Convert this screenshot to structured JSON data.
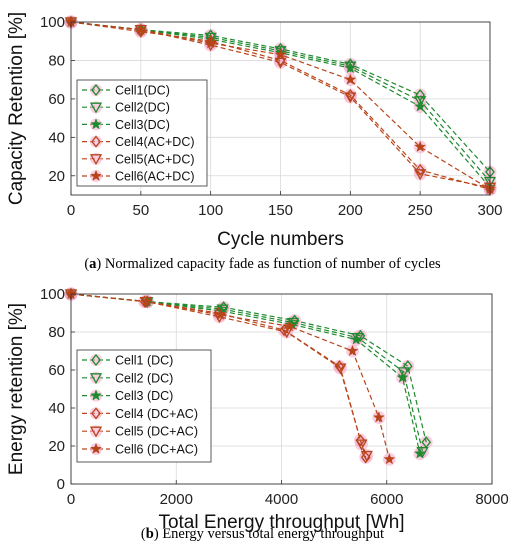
{
  "captions": {
    "a_label": "a",
    "a_text": "Normalized capacity fade as function of number of cycles",
    "b_label": "b",
    "b_text": "Energy versus total energy throughput"
  },
  "colors": {
    "dc": "#1f8a2e",
    "acdc": "#b8451a",
    "highlight": "#f4a8c8"
  },
  "chart_data": [
    {
      "type": "line",
      "xlabel": "Cycle numbers",
      "ylabel": "Capacity Retention [%]",
      "xlim": [
        0,
        300
      ],
      "ylim": [
        10,
        100
      ],
      "xticks": [
        0,
        50,
        100,
        150,
        200,
        250,
        300
      ],
      "yticks": [
        20,
        40,
        60,
        80,
        100
      ],
      "grid": true,
      "legend_position": "lower-left",
      "series": [
        {
          "name": "Cell1(DC)",
          "group": "dc",
          "marker": "diamond",
          "x": [
            0,
            50,
            100,
            150,
            200,
            250,
            300
          ],
          "y": [
            100,
            96,
            93,
            86,
            78,
            62,
            22
          ]
        },
        {
          "name": "Cell2(DC)",
          "group": "dc",
          "marker": "triangle-down",
          "x": [
            0,
            50,
            100,
            150,
            200,
            250,
            300
          ],
          "y": [
            100,
            96,
            92,
            85,
            77,
            59,
            17
          ]
        },
        {
          "name": "Cell3(DC)",
          "group": "dc",
          "marker": "star",
          "x": [
            0,
            50,
            100,
            150,
            200,
            250,
            300
          ],
          "y": [
            100,
            96,
            91,
            84,
            76,
            56,
            14
          ]
        },
        {
          "name": "Cell4(AC+DC)",
          "group": "acdc",
          "marker": "diamond",
          "x": [
            0,
            50,
            100,
            150,
            200,
            250,
            300
          ],
          "y": [
            100,
            95,
            90,
            80,
            62,
            23,
            13
          ]
        },
        {
          "name": "Cell5(AC+DC)",
          "group": "acdc",
          "marker": "triangle-down",
          "x": [
            0,
            50,
            100,
            150,
            200,
            250,
            300
          ],
          "y": [
            100,
            96,
            88,
            79,
            61,
            21,
            14
          ]
        },
        {
          "name": "Cell6(AC+DC)",
          "group": "acdc",
          "marker": "star",
          "x": [
            0,
            50,
            100,
            150,
            200,
            250,
            300
          ],
          "y": [
            100,
            96,
            89,
            83,
            70,
            35,
            13
          ]
        }
      ]
    },
    {
      "type": "line",
      "xlabel": "Total Energy throughput [Wh]",
      "ylabel": "Energy retention [%]",
      "xlim": [
        0,
        8000
      ],
      "ylim": [
        0,
        100
      ],
      "xticks": [
        0,
        2000,
        4000,
        6000,
        8000
      ],
      "yticks": [
        0,
        20,
        40,
        60,
        80,
        100
      ],
      "grid": true,
      "legend_position": "lower-left",
      "series": [
        {
          "name": "Cell1 (DC)",
          "group": "dc",
          "marker": "diamond",
          "x": [
            0,
            1450,
            2900,
            4250,
            5500,
            6400,
            6750
          ],
          "y": [
            100,
            96,
            93,
            86,
            78,
            62,
            22
          ]
        },
        {
          "name": "Cell2 (DC)",
          "group": "dc",
          "marker": "triangle-down",
          "x": [
            0,
            1450,
            2880,
            4220,
            5450,
            6320,
            6680
          ],
          "y": [
            100,
            96,
            92,
            85,
            77,
            59,
            17
          ]
        },
        {
          "name": "Cell3 (DC)",
          "group": "dc",
          "marker": "star",
          "x": [
            0,
            1450,
            2860,
            4200,
            5420,
            6300,
            6630
          ],
          "y": [
            100,
            96,
            91,
            84,
            76,
            56,
            16
          ]
        },
        {
          "name": "Cell4 (DC+AC)",
          "group": "acdc",
          "marker": "diamond",
          "x": [
            0,
            1400,
            2800,
            4050,
            5100,
            5500,
            5600
          ],
          "y": [
            100,
            96,
            90,
            81,
            62,
            23,
            14
          ]
        },
        {
          "name": "Cell5 (DC+AC)",
          "group": "acdc",
          "marker": "triangle-down",
          "x": [
            0,
            1420,
            2820,
            4100,
            5120,
            5520,
            5620
          ],
          "y": [
            100,
            96,
            88,
            80,
            61,
            21,
            15
          ]
        },
        {
          "name": "Cell6 (DC+AC)",
          "group": "acdc",
          "marker": "star",
          "x": [
            0,
            1440,
            2840,
            4150,
            5350,
            5850,
            6050
          ],
          "y": [
            100,
            96,
            89,
            83,
            70,
            35,
            13
          ]
        }
      ]
    }
  ]
}
